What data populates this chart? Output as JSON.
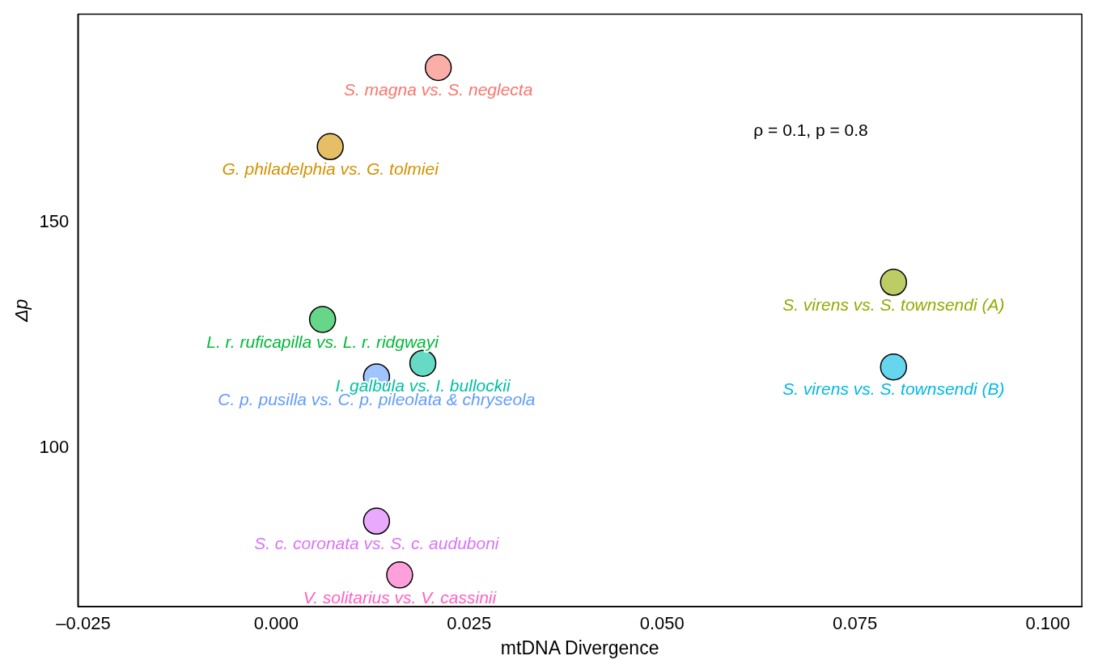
{
  "chart_data": {
    "type": "scatter",
    "xlabel": "mtDNA Divergence",
    "ylabel": "Δp",
    "xlim": [
      -0.0257,
      0.1044
    ],
    "ylim": [
      65,
      196
    ],
    "xticks": [
      {
        "value": -0.025,
        "label": "–0.025"
      },
      {
        "value": 0,
        "label": "0.000"
      },
      {
        "value": 0.025,
        "label": "0.025"
      },
      {
        "value": 0.05,
        "label": "0.050"
      },
      {
        "value": 0.075,
        "label": "0.075"
      },
      {
        "value": 0.1,
        "label": "0.100"
      }
    ],
    "yticks": [
      100,
      150
    ],
    "grid": false,
    "legend": false,
    "marker": "circle",
    "annotations": [
      "ρ = 0.1, p = 0.8"
    ],
    "series": [
      {
        "name": "S. magna vs. S. neglecta",
        "color": "#F8766D",
        "x": [
          0.021
        ],
        "values": [
          184.2
        ]
      },
      {
        "name": "G. philadelphia vs. G. tolmiei",
        "color": "#D39200",
        "x": [
          0.007
        ],
        "values": [
          166.7
        ]
      },
      {
        "name": "S. virens vs. S. townsendi (A)",
        "color": "#93AA00",
        "x": [
          0.08
        ],
        "values": [
          136.7
        ]
      },
      {
        "name": "L. r. ruficapilla vs. L. r. ridgwayi",
        "color": "#00BA38",
        "x": [
          0.006
        ],
        "values": [
          128.5
        ]
      },
      {
        "name": "I. galbula vs. I. bullockii",
        "color": "#00C19F",
        "x": [
          0.019
        ],
        "values": [
          118.8
        ]
      },
      {
        "name": "S. virens vs. S. townsendi (B)",
        "color": "#00B9E3",
        "x": [
          0.08
        ],
        "values": [
          118
        ]
      },
      {
        "name": "C. p. pusilla vs. C. p. pileolata & chryseola",
        "color": "#619CFF",
        "x": [
          0.013
        ],
        "values": [
          115.8
        ]
      },
      {
        "name": "S. c. coronata vs. S. c. auduboni",
        "color": "#DB72FB",
        "x": [
          0.013
        ],
        "values": [
          83.9
        ]
      },
      {
        "name": "V. solitarius vs. V. cassinii",
        "color": "#FF61C3",
        "x": [
          0.016
        ],
        "values": [
          72
        ]
      }
    ]
  }
}
